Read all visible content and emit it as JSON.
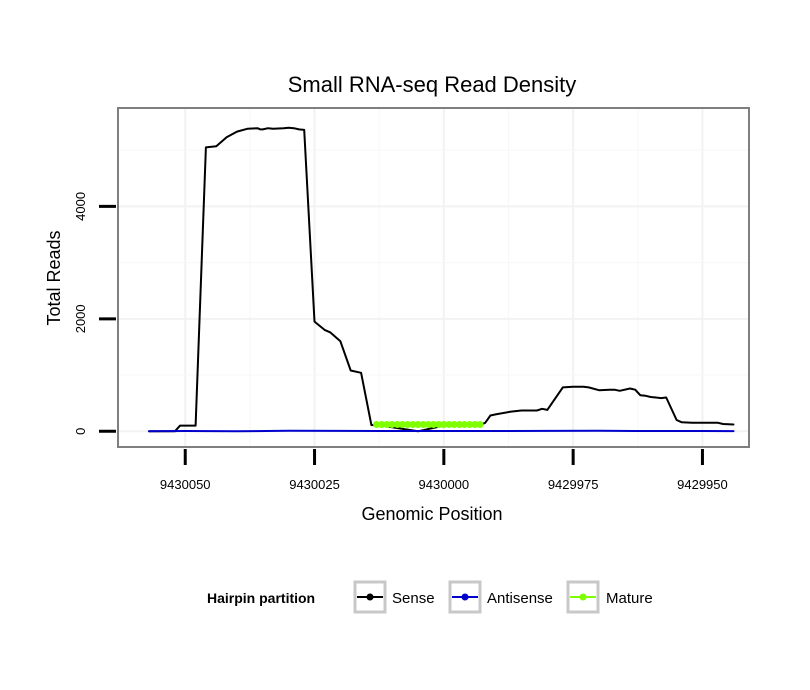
{
  "chart_data": {
    "type": "line",
    "title": "Small RNA-seq Read Density",
    "xlabel": "Genomic Position",
    "ylabel": "Total Reads",
    "x_reversed": true,
    "xlim": [
      9430063,
      9429941
    ],
    "ylim": [
      -280,
      5750
    ],
    "x_ticks": [
      9430050,
      9430025,
      9430000,
      9429975,
      9429950
    ],
    "x_tick_labels": [
      "9430050",
      "9430025",
      "9430000",
      "9429975",
      "9429950"
    ],
    "y_ticks": [
      0,
      2000,
      4000
    ],
    "y_tick_labels": [
      "0",
      "2000",
      "4000"
    ],
    "grid": true,
    "legend": {
      "title": "Hairpin partition",
      "position": "bottom",
      "entries": [
        "Sense",
        "Antisense",
        "Mature"
      ]
    },
    "series": [
      {
        "name": "Sense",
        "color": "#000000",
        "x": [
          9430057,
          9430052,
          9430051,
          9430050.5,
          9430050,
          9430049,
          9430048,
          9430046,
          9430044,
          9430042,
          9430040,
          9430038,
          9430036,
          9430035.5,
          9430035,
          9430034,
          9430033,
          9430031,
          9430030,
          9430029,
          9430028,
          9430027,
          9430025,
          9430023,
          9430022,
          9430020,
          9430018,
          9430016,
          9430014,
          9430012,
          9430010,
          9430005,
          9430000,
          9429996,
          9429994,
          9429993,
          9429992,
          9429991,
          9429990,
          9429987,
          9429985,
          9429982,
          9429981,
          9429980,
          9429977,
          9429975,
          9429973,
          9429972,
          9429970,
          9429968,
          9429967,
          9429966,
          9429964,
          9429963,
          9429962,
          9429961,
          9429960,
          9429959,
          9429958,
          9429957,
          9429955,
          9429954,
          9429952,
          9429950,
          9429947,
          9429946,
          9429944
        ],
        "y": [
          0,
          0,
          100,
          100,
          100,
          100,
          100,
          5050,
          5070,
          5230,
          5330,
          5380,
          5390,
          5370,
          5370,
          5390,
          5380,
          5390,
          5400,
          5390,
          5370,
          5360,
          1950,
          1800,
          1760,
          1600,
          1080,
          1040,
          110,
          110,
          70,
          0,
          100,
          100,
          100,
          110,
          150,
          280,
          300,
          350,
          370,
          370,
          400,
          380,
          780,
          790,
          790,
          780,
          730,
          740,
          740,
          720,
          760,
          740,
          640,
          630,
          610,
          600,
          590,
          600,
          200,
          160,
          150,
          150,
          150,
          130,
          120
        ]
      },
      {
        "name": "Antisense",
        "color": "#0000cc",
        "x": [
          9430057,
          9430050,
          9430040,
          9430030,
          9430020,
          9430010,
          9430000,
          9429990,
          9429980,
          9429970,
          9429960,
          9429950,
          9429944
        ],
        "y": [
          0,
          5,
          0,
          8,
          6,
          4,
          4,
          5,
          6,
          8,
          5,
          4,
          3
        ]
      },
      {
        "name": "Mature",
        "color": "#7fff00",
        "x": [
          9430013,
          9430012,
          9430011,
          9430010,
          9430009,
          9430008,
          9430007,
          9430006,
          9430005,
          9430004,
          9430003,
          9430002,
          9430001,
          9430000,
          9429999,
          9429998,
          9429997,
          9429996,
          9429995,
          9429994,
          9429993
        ],
        "y": [
          120,
          120,
          120,
          120,
          120,
          120,
          120,
          120,
          120,
          120,
          120,
          120,
          120,
          120,
          120,
          120,
          120,
          120,
          120,
          120,
          120
        ]
      }
    ]
  }
}
